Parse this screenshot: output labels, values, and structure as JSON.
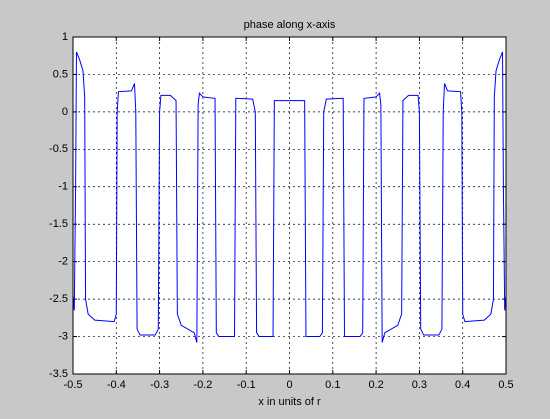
{
  "chart_data": {
    "type": "line",
    "title": "phase along x-axis",
    "x_label": "x in units of r",
    "x": [
      -0.5,
      -0.497,
      -0.494,
      -0.492,
      -0.485,
      -0.477,
      -0.473,
      -0.471,
      -0.465,
      -0.45,
      -0.405,
      -0.4,
      -0.398,
      -0.395,
      -0.365,
      -0.358,
      -0.355,
      -0.352,
      -0.345,
      -0.31,
      -0.303,
      -0.3,
      -0.297,
      -0.275,
      -0.262,
      -0.259,
      -0.25,
      -0.22,
      -0.214,
      -0.211,
      -0.208,
      -0.2,
      -0.172,
      -0.169,
      -0.163,
      -0.127,
      -0.124,
      -0.119,
      -0.085,
      -0.079,
      -0.076,
      -0.07,
      -0.038,
      -0.035,
      0,
      0.035,
      0.038,
      0.07,
      0.076,
      0.079,
      0.085,
      0.119,
      0.124,
      0.127,
      0.163,
      0.169,
      0.172,
      0.2,
      0.208,
      0.211,
      0.214,
      0.22,
      0.25,
      0.259,
      0.262,
      0.275,
      0.297,
      0.3,
      0.303,
      0.31,
      0.345,
      0.352,
      0.355,
      0.358,
      0.365,
      0.395,
      0.398,
      0.4,
      0.405,
      0.45,
      0.465,
      0.471,
      0.473,
      0.477,
      0.485,
      0.492,
      0.494,
      0.497,
      0.5
    ],
    "values": [
      -2.45,
      -2.65,
      -1.0,
      0.8,
      0.7,
      0.55,
      0.2,
      -2.5,
      -2.7,
      -2.78,
      -2.8,
      -2.7,
      0.0,
      0.27,
      0.28,
      0.38,
      0.0,
      -2.9,
      -2.98,
      -2.98,
      -2.9,
      0.0,
      0.22,
      0.22,
      0.15,
      -2.7,
      -2.85,
      -2.95,
      -3.08,
      0.1,
      0.25,
      0.2,
      0.18,
      -2.95,
      -3.0,
      -3.0,
      0.18,
      0.18,
      0.17,
      0.0,
      -2.95,
      -3.0,
      -3.0,
      0.15,
      0.15,
      0.15,
      -3.0,
      -3.0,
      -2.95,
      0.0,
      0.17,
      0.18,
      0.18,
      -3.0,
      -3.0,
      -2.95,
      0.18,
      0.2,
      0.25,
      0.1,
      -3.08,
      -2.95,
      -2.85,
      -2.7,
      0.15,
      0.22,
      0.22,
      0.0,
      -2.9,
      -2.98,
      -2.98,
      -2.9,
      0.0,
      0.38,
      0.28,
      0.27,
      0.0,
      -2.7,
      -2.8,
      -2.78,
      -2.7,
      -2.5,
      0.2,
      0.55,
      0.7,
      0.8,
      -1.0,
      -2.65,
      -2.45
    ],
    "color": "#0000ff",
    "xlim": [
      -0.5,
      0.5
    ],
    "xticks": [
      -0.5,
      -0.4,
      -0.3,
      -0.2,
      -0.1,
      0,
      0.1,
      0.2,
      0.3,
      0.4,
      0.5
    ],
    "ylim": [
      -3.5,
      1
    ],
    "yticks": [
      -3.5,
      -3,
      -2.5,
      -2,
      -1.5,
      -1,
      -0.5,
      0,
      0.5,
      1
    ],
    "grid": true
  }
}
